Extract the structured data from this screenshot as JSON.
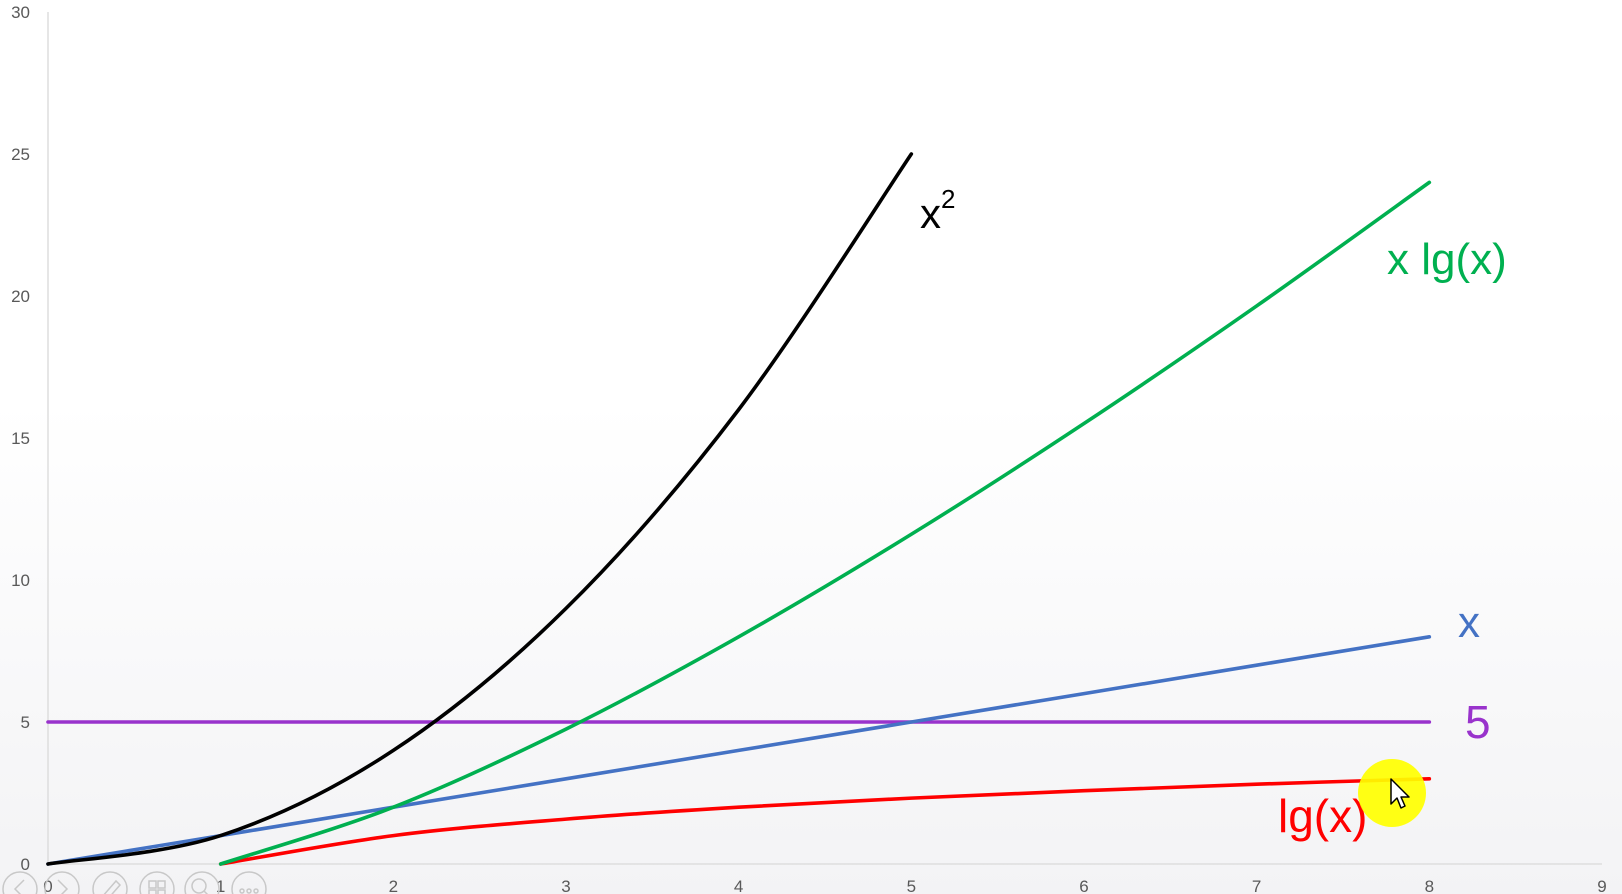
{
  "chart_data": {
    "type": "line",
    "title": "",
    "xlabel": "",
    "ylabel": "",
    "xlim": [
      0,
      9
    ],
    "ylim": [
      0,
      30
    ],
    "x_ticks": [
      "0",
      "1",
      "2",
      "3",
      "4",
      "5",
      "6",
      "7",
      "8",
      "9"
    ],
    "y_ticks": [
      "0",
      "5",
      "10",
      "15",
      "20",
      "25",
      "30"
    ],
    "grid": false,
    "legend": "none",
    "series": [
      {
        "key": "square",
        "label": "x",
        "label_superscript": "2",
        "color": "#000000",
        "x": [
          0,
          1,
          2,
          3,
          4,
          5
        ],
        "y": [
          0,
          1,
          4,
          9,
          16,
          25
        ]
      },
      {
        "key": "xlogx",
        "label": "x lg(x)",
        "color": "#00b050",
        "x": [
          1,
          2,
          3,
          4,
          5,
          6,
          7,
          8
        ],
        "y": [
          0,
          2,
          4.75,
          8,
          11.61,
          15.51,
          19.65,
          24
        ]
      },
      {
        "key": "linear",
        "label": "x",
        "color": "#4472c4",
        "x": [
          0,
          1,
          2,
          3,
          4,
          5,
          6,
          7,
          8
        ],
        "y": [
          0,
          1,
          2,
          3,
          4,
          5,
          6,
          7,
          8
        ]
      },
      {
        "key": "constant",
        "label": "5",
        "color": "#9933cc",
        "x": [
          0,
          8
        ],
        "y": [
          5,
          5
        ]
      },
      {
        "key": "log",
        "label": "lg(x)",
        "color": "#ff0000",
        "x": [
          1,
          2,
          3,
          4,
          5,
          6,
          7,
          8
        ],
        "y": [
          0,
          1,
          1.58,
          2,
          2.32,
          2.58,
          2.81,
          3
        ]
      }
    ]
  },
  "cursor": {
    "highlight_color": "#ffff00",
    "icon": "mouse-pointer-icon"
  },
  "slideshow_controls": [
    {
      "icon": "previous-slide-icon"
    },
    {
      "icon": "next-slide-icon"
    },
    {
      "icon": "pen-icon"
    },
    {
      "icon": "slides-grid-icon"
    },
    {
      "icon": "zoom-icon"
    },
    {
      "icon": "more-options-icon"
    }
  ]
}
